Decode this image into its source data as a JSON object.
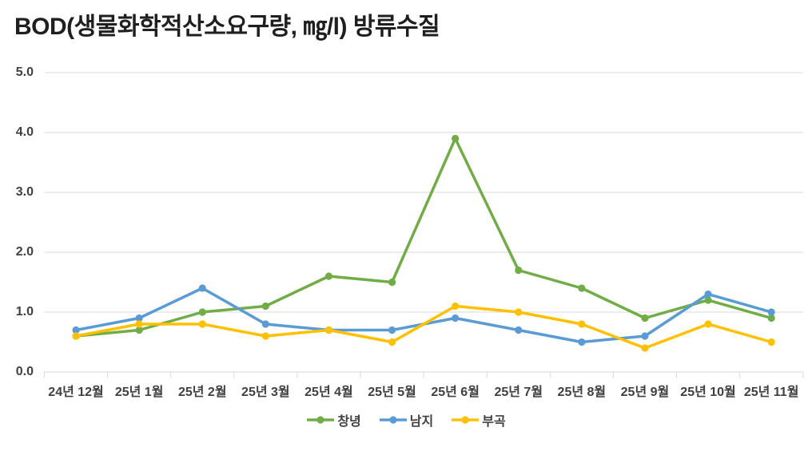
{
  "title": "BOD(생물화학적산소요구량, ㎎/l) 방류수질",
  "colors": {
    "grid": "#D9D9D9",
    "axis_text": "#404040",
    "title_text": "#1F1F1F"
  },
  "chart_data": {
    "type": "line",
    "title": "BOD(생물화학적산소요구량, ㎎/l) 방류수질",
    "categories": [
      "24년 12월",
      "25년 1월",
      "25년 2월",
      "25년 3월",
      "25년 4월",
      "25년 5월",
      "25년 6월",
      "25년 7월",
      "25년 8월",
      "25년 9월",
      "25년 10월",
      "25년 11월"
    ],
    "series": [
      {
        "name": "창녕",
        "color": "#70AD47",
        "values": [
          0.6,
          0.7,
          1.0,
          1.1,
          1.6,
          1.5,
          3.9,
          1.7,
          1.4,
          0.9,
          1.2,
          0.9
        ]
      },
      {
        "name": "남지",
        "color": "#5B9BD5",
        "values": [
          0.7,
          0.9,
          1.4,
          0.8,
          0.7,
          0.7,
          0.9,
          0.7,
          0.5,
          0.6,
          1.3,
          1.0
        ]
      },
      {
        "name": "부곡",
        "color": "#FFC000",
        "values": [
          0.6,
          0.8,
          0.8,
          0.6,
          0.7,
          0.5,
          1.1,
          1.0,
          0.8,
          0.4,
          0.8,
          0.5
        ]
      }
    ],
    "xlabel": "",
    "ylabel": "",
    "ylim": [
      0.0,
      5.0
    ],
    "y_ticks": [
      "0.0",
      "1.0",
      "2.0",
      "3.0",
      "4.0",
      "5.0"
    ],
    "grid": true,
    "legend_position": "bottom"
  }
}
